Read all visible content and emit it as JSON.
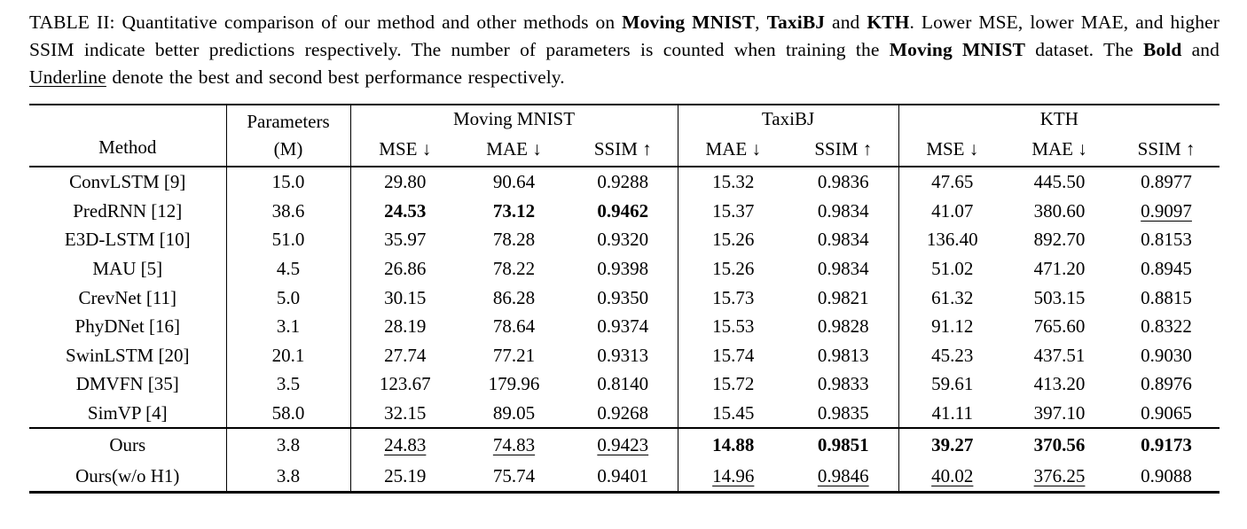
{
  "caption": {
    "segments": [
      {
        "text": "TABLE II: Quantitative comparison of our method and other methods on ",
        "style": "normal"
      },
      {
        "text": "Moving MNIST",
        "style": "bold"
      },
      {
        "text": ", ",
        "style": "normal"
      },
      {
        "text": "TaxiBJ",
        "style": "bold"
      },
      {
        "text": " and ",
        "style": "normal"
      },
      {
        "text": "KTH",
        "style": "bold"
      },
      {
        "text": ". Lower MSE, lower MAE, and higher SSIM indicate better predictions respectively. The number of parameters is counted when training the ",
        "style": "normal"
      },
      {
        "text": "Moving MNIST",
        "style": "bold"
      },
      {
        "text": " dataset. The ",
        "style": "normal"
      },
      {
        "text": "Bold",
        "style": "bold"
      },
      {
        "text": " and ",
        "style": "normal"
      },
      {
        "text": "Underline",
        "style": "underline"
      },
      {
        "text": " denote the best and second best performance respectively.",
        "style": "normal"
      }
    ]
  },
  "table": {
    "header": {
      "method_label": "Method",
      "parameters_line1": "Parameters",
      "parameters_line2": "(M)",
      "groups": [
        {
          "label": "Moving MNIST",
          "metrics": [
            "MSE ↓",
            "MAE ↓",
            "SSIM ↑"
          ]
        },
        {
          "label": "TaxiBJ",
          "metrics": [
            "MAE ↓",
            "SSIM ↑"
          ]
        },
        {
          "label": "KTH",
          "metrics": [
            "MSE ↓",
            "MAE ↓",
            "SSIM ↑"
          ]
        }
      ]
    },
    "rows": [
      {
        "method": "ConvLSTM [9]",
        "params": "15.0",
        "cells": [
          {
            "v": "29.80",
            "s": "n"
          },
          {
            "v": "90.64",
            "s": "n"
          },
          {
            "v": "0.9288",
            "s": "n"
          },
          {
            "v": "15.32",
            "s": "n"
          },
          {
            "v": "0.9836",
            "s": "n"
          },
          {
            "v": "47.65",
            "s": "n"
          },
          {
            "v": "445.50",
            "s": "n"
          },
          {
            "v": "0.8977",
            "s": "n"
          }
        ]
      },
      {
        "method": "PredRNN [12]",
        "params": "38.6",
        "cells": [
          {
            "v": "24.53",
            "s": "b"
          },
          {
            "v": "73.12",
            "s": "b"
          },
          {
            "v": "0.9462",
            "s": "b"
          },
          {
            "v": "15.37",
            "s": "n"
          },
          {
            "v": "0.9834",
            "s": "n"
          },
          {
            "v": "41.07",
            "s": "n"
          },
          {
            "v": "380.60",
            "s": "n"
          },
          {
            "v": "0.9097",
            "s": "u"
          }
        ]
      },
      {
        "method": "E3D-LSTM [10]",
        "params": "51.0",
        "cells": [
          {
            "v": "35.97",
            "s": "n"
          },
          {
            "v": "78.28",
            "s": "n"
          },
          {
            "v": "0.9320",
            "s": "n"
          },
          {
            "v": "15.26",
            "s": "n"
          },
          {
            "v": "0.9834",
            "s": "n"
          },
          {
            "v": "136.40",
            "s": "n"
          },
          {
            "v": "892.70",
            "s": "n"
          },
          {
            "v": "0.8153",
            "s": "n"
          }
        ]
      },
      {
        "method": "MAU [5]",
        "params": "4.5",
        "cells": [
          {
            "v": "26.86",
            "s": "n"
          },
          {
            "v": "78.22",
            "s": "n"
          },
          {
            "v": "0.9398",
            "s": "n"
          },
          {
            "v": "15.26",
            "s": "n"
          },
          {
            "v": "0.9834",
            "s": "n"
          },
          {
            "v": "51.02",
            "s": "n"
          },
          {
            "v": "471.20",
            "s": "n"
          },
          {
            "v": "0.8945",
            "s": "n"
          }
        ]
      },
      {
        "method": "CrevNet [11]",
        "params": "5.0",
        "cells": [
          {
            "v": "30.15",
            "s": "n"
          },
          {
            "v": "86.28",
            "s": "n"
          },
          {
            "v": "0.9350",
            "s": "n"
          },
          {
            "v": "15.73",
            "s": "n"
          },
          {
            "v": "0.9821",
            "s": "n"
          },
          {
            "v": "61.32",
            "s": "n"
          },
          {
            "v": "503.15",
            "s": "n"
          },
          {
            "v": "0.8815",
            "s": "n"
          }
        ]
      },
      {
        "method": "PhyDNet [16]",
        "params": "3.1",
        "cells": [
          {
            "v": "28.19",
            "s": "n"
          },
          {
            "v": "78.64",
            "s": "n"
          },
          {
            "v": "0.9374",
            "s": "n"
          },
          {
            "v": "15.53",
            "s": "n"
          },
          {
            "v": "0.9828",
            "s": "n"
          },
          {
            "v": "91.12",
            "s": "n"
          },
          {
            "v": "765.60",
            "s": "n"
          },
          {
            "v": "0.8322",
            "s": "n"
          }
        ]
      },
      {
        "method": "SwinLSTM [20]",
        "params": "20.1",
        "cells": [
          {
            "v": "27.74",
            "s": "n"
          },
          {
            "v": "77.21",
            "s": "n"
          },
          {
            "v": "0.9313",
            "s": "n"
          },
          {
            "v": "15.74",
            "s": "n"
          },
          {
            "v": "0.9813",
            "s": "n"
          },
          {
            "v": "45.23",
            "s": "n"
          },
          {
            "v": "437.51",
            "s": "n"
          },
          {
            "v": "0.9030",
            "s": "n"
          }
        ]
      },
      {
        "method": "DMVFN [35]",
        "params": "3.5",
        "cells": [
          {
            "v": "123.67",
            "s": "n"
          },
          {
            "v": "179.96",
            "s": "n"
          },
          {
            "v": "0.8140",
            "s": "n"
          },
          {
            "v": "15.72",
            "s": "n"
          },
          {
            "v": "0.9833",
            "s": "n"
          },
          {
            "v": "59.61",
            "s": "n"
          },
          {
            "v": "413.20",
            "s": "n"
          },
          {
            "v": "0.8976",
            "s": "n"
          }
        ]
      },
      {
        "method": "SimVP [4]",
        "params": "58.0",
        "cells": [
          {
            "v": "32.15",
            "s": "n"
          },
          {
            "v": "89.05",
            "s": "n"
          },
          {
            "v": "0.9268",
            "s": "n"
          },
          {
            "v": "15.45",
            "s": "n"
          },
          {
            "v": "0.9835",
            "s": "n"
          },
          {
            "v": "41.11",
            "s": "n"
          },
          {
            "v": "397.10",
            "s": "n"
          },
          {
            "v": "0.9065",
            "s": "n"
          }
        ]
      }
    ],
    "ours_rows": [
      {
        "method": "Ours",
        "params": "3.8",
        "cells": [
          {
            "v": "24.83",
            "s": "u"
          },
          {
            "v": "74.83",
            "s": "u"
          },
          {
            "v": "0.9423",
            "s": "u"
          },
          {
            "v": "14.88",
            "s": "b"
          },
          {
            "v": "0.9851",
            "s": "b"
          },
          {
            "v": "39.27",
            "s": "b"
          },
          {
            "v": "370.56",
            "s": "b"
          },
          {
            "v": "0.9173",
            "s": "b"
          }
        ]
      },
      {
        "method": "Ours(w/o H1)",
        "params": "3.8",
        "cells": [
          {
            "v": "25.19",
            "s": "n"
          },
          {
            "v": "75.74",
            "s": "n"
          },
          {
            "v": "0.9401",
            "s": "n"
          },
          {
            "v": "14.96",
            "s": "u"
          },
          {
            "v": "0.9846",
            "s": "u"
          },
          {
            "v": "40.02",
            "s": "u"
          },
          {
            "v": "376.25",
            "s": "u"
          },
          {
            "v": "0.9088",
            "s": "n"
          }
        ]
      }
    ]
  }
}
